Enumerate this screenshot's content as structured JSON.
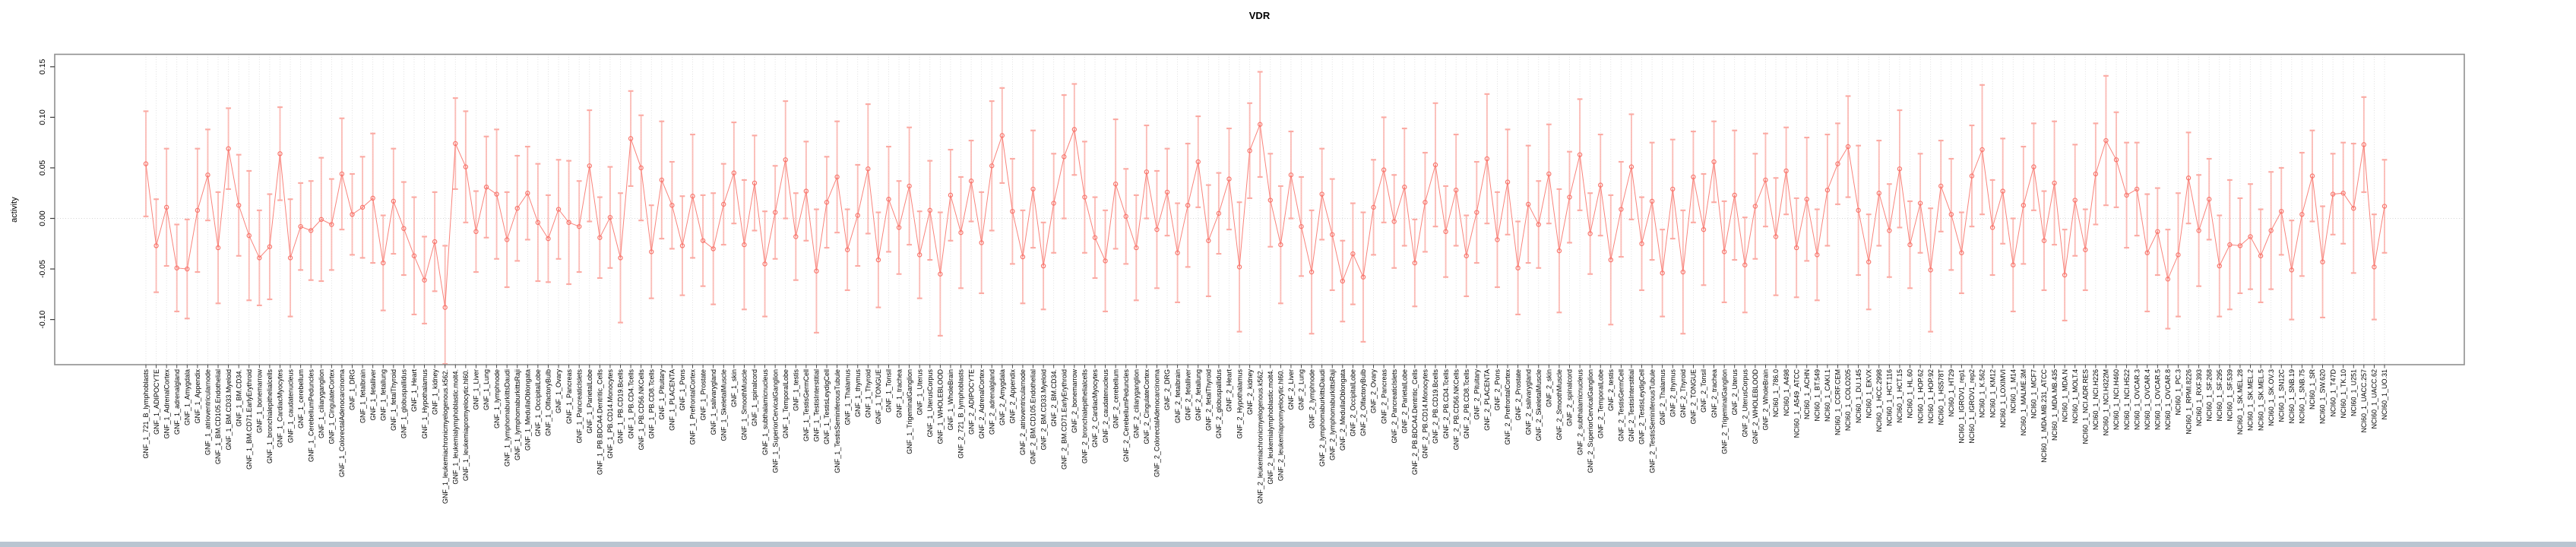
{
  "chart_data": {
    "type": "line",
    "title": "VDR",
    "ylabel": "activity",
    "xlabel": "",
    "legend": "none",
    "grid": "vertical dotted line per category; dotted horizontal line at y=0",
    "marker": "open-circle",
    "error_bars": "symmetric with caps",
    "ylim": [
      -0.145,
      0.162
    ],
    "yticks": [
      0.15,
      0.1,
      0.05,
      0.0,
      -0.05,
      -0.1
    ],
    "y_tick_labels": [
      "0.15",
      "0.10",
      "0.05",
      "0.00",
      "-0.05",
      "-0.10"
    ],
    "colors": {
      "series": "#f8766d",
      "error_bar": "#fbaaa3",
      "grid": "#d9d9d9",
      "zero_line": "#d4d4d4",
      "box": "#8f8f8f",
      "tick": "#3c3c3c",
      "text": "#000000",
      "background": "#ffffff",
      "bottom_edge": "#b9c5d1"
    },
    "categories": [
      "GNF_1_721_B_lymphoblasts",
      "GNF_1_ADIPOCYTE",
      "GNF_1_AdrenalCortex",
      "GNF_1_adrenalgland",
      "GNF_1_Amygdala",
      "GNF_1_Appendix",
      "GNF_1_atrioventricularnode",
      "GNF_1_BM.CD105.Endothelial",
      "GNF_1_BM.CD33.Myeloid",
      "GNF_1_BM.CD34.",
      "GNF_1_BM.CD71.EarlyErythroid",
      "GNF_1_bonemarrow",
      "GNF_1_bronchialepithelialcells",
      "GNF_1_CardiacMyocytes",
      "GNF_1_caudatenucleus",
      "GNF_1_cerebellum",
      "GNF_1_CerebellumPeduncles",
      "GNF_1_ciliaryganglion",
      "GNF_1_CingulateCortex",
      "GNF_1_ColorectalAdenocarcinoma",
      "GNF_1_DRG",
      "GNF_1_fetalbrain",
      "GNF_1_fetalliver",
      "GNF_1_fetallung",
      "GNF_1_fetalThyroid",
      "GNF_1_globuspallidus",
      "GNF_1_Heart",
      "GNF_1_Hypothalamus",
      "GNF_1_kidney",
      "GNF_1_leukemiachronicmyelogenous.k562.",
      "GNF_1_leukemialymphoblastic.molt4.",
      "GNF_1_leukemiapromyelocytic.hl60.",
      "GNF_1_Liver",
      "GNF_1_Lung",
      "GNF_1_lymphnode",
      "GNF_1_lymphomaburkittsDaudi",
      "GNF_1_lymphomaburkittsRaji",
      "GNF_1_MedullaOblongata",
      "GNF_1_OccipitalLobe",
      "GNF_1_OlfactoryBulb",
      "GNF_1_Ovary",
      "GNF_1_Pancreas",
      "GNF_1_PancreaticIslets",
      "GNF_1_ParietalLobe",
      "GNF_1_PB.BDCA4.Dentritic_Cells",
      "GNF_1_PB.CD14.Monocytes",
      "GNF_1_PB.CD19.Bcells",
      "GNF_1_PB.CD4.Tcells",
      "GNF_1_PB.CD56.NKCells",
      "GNF_1_PB.CD8.Tcells",
      "GNF_1_Pituitary",
      "GNF_1_PLACENTA",
      "GNF_1_Pons",
      "GNF_1_PrefrontalCortex",
      "GNF_1_Prostate",
      "GNF_1_salivarygland",
      "GNF_1_SkeletalMuscle",
      "GNF_1_skin",
      "GNF_1_SmoothMuscle",
      "GNF_1_spinalcord",
      "GNF_1_subthalamicnucleus",
      "GNF_1_SuperiorCervicalGanglion",
      "GNF_1_TemporalLobe",
      "GNF_1_testis",
      "GNF_1_TestisGermCell",
      "GNF_1_TestisInterstitial",
      "GNF_1_TestisLeydigCell",
      "GNF_1_TestisSeminiferousTubule",
      "GNF_1_Thalamus",
      "GNF_1_thymus",
      "GNF_1_Thyroid",
      "GNF_1_TONGUE",
      "GNF_1_Tonsil",
      "GNF_1_trachea",
      "GNF_1_TrigeminalGanglion",
      "GNF_1_Uterus",
      "GNF_1_UterusCorpus",
      "GNF_1_WHOLEBLOOD",
      "GNF_1_WholeBrain",
      "GNF_2_721_B_lymphoblasts",
      "GNF_2_ADIPOCYTE",
      "GNF_2_AdrenalCortex",
      "GNF_2_adrenalgland",
      "GNF_2_Amygdala",
      "GNF_2_Appendix",
      "GNF_2_atrioventricularnode",
      "GNF_2_BM.CD105.Endothelial",
      "GNF_2_BM.CD33.Myeloid",
      "GNF_2_BM.CD34.",
      "GNF_2_BM.CD71.EarlyErythroid",
      "GNF_2_bonemarrow",
      "GNF_2_bronchialepithelialcells",
      "GNF_2_CardiacMyocytes",
      "GNF_2_caudatenucleus",
      "GNF_2_cerebellum",
      "GNF_2_CerebellumPeduncles",
      "GNF_2_ciliaryganglion",
      "GNF_2_CingulateCortex",
      "GNF_2_ColorectalAdenocarcinoma",
      "GNF_2_DRG",
      "GNF_2_fetalbrain",
      "GNF_2_fetalliver",
      "GNF_2_fetallung",
      "GNF_2_fetalThyroid",
      "GNF_2_globuspallidus",
      "GNF_2_Heart",
      "GNF_2_Hypothalamus",
      "GNF_2_kidney",
      "GNF_2_leukemiachronicmyelogenous.k562.",
      "GNF_2_leukemialymphoblastic.molt4.",
      "GNF_2_leukemiapromyelocytic.hl60.",
      "GNF_2_Liver",
      "GNF_2_Lung",
      "GNF_2_lymphnode",
      "GNF_2_lymphomaburkittsDaudi",
      "GNF_2_lymphomaburkittsRaji",
      "GNF_2_MedullaOblongata",
      "GNF_2_OccipitalLobe",
      "GNF_2_OlfactoryBulb",
      "GNF_2_Ovary",
      "GNF_2_Pancreas",
      "GNF_2_PancreaticIslets",
      "GNF_2_ParietalLobe",
      "GNF_2_PB.BDCA4.Dentritic_Cells",
      "GNF_2_PB.CD14.Monocytes",
      "GNF_2_PB.CD19.Bcells",
      "GNF_2_PB.CD4.Tcells",
      "GNF_2_PB.CD56.NKCells",
      "GNF_2_PB.CD8.Tcells",
      "GNF_2_Pituitary",
      "GNF_2_PLACENTA",
      "GNF_2_Pons",
      "GNF_2_PrefrontalCortex",
      "GNF_2_Prostate",
      "GNF_2_salivarygland",
      "GNF_2_SkeletalMuscle",
      "GNF_2_skin",
      "GNF_2_SmoothMuscle",
      "GNF_2_spinalcord",
      "GNF_2_subthalamicnucleus",
      "GNF_2_SuperiorCervicalGanglion",
      "GNF_2_TemporalLobe",
      "GNF_2_testis",
      "GNF_2_TestisGermCell",
      "GNF_2_TestisInterstitial",
      "GNF_2_TestisLeydigCell",
      "GNF_2_TestisSeminiferousTubule",
      "GNF_2_Thalamus",
      "GNF_2_thymus",
      "GNF_2_Thyroid",
      "GNF_2_TONGUE",
      "GNF_2_Tonsil",
      "GNF_2_trachea",
      "GNF_2_TrigeminalGanglion",
      "GNF_2_Uterus",
      "GNF_2_UterusCorpus",
      "GNF_2_WHOLEBLOOD",
      "GNF_2_WholeBrain",
      "NCI60_1_786.0",
      "NCI60_1_A498",
      "NCI60_1_A549_ATCC",
      "NCI60_1_ACHN",
      "NCI60_1_BT.549",
      "NCI60_1_CAKI.1",
      "NCI60_1_CCRF.CEM",
      "NCI60_1_COLO205",
      "NCI60_1_DU.145",
      "NCI60_1_EKVX",
      "NCI60_1_HCC.2998",
      "NCI60_1_HCT.116",
      "NCI60_1_HCT.15",
      "NCI60_1_HL.60",
      "NCI60_1_HOP.62",
      "NCI60_1_HOP.92",
      "NCI60_1_HS578T",
      "NCI60_1_HT29",
      "NCI60_1_IGROV1_rep1",
      "NCI60_1_IGROV1_rep2",
      "NCI60_1_K.562",
      "NCI60_1_KM12",
      "NCI60_1_LOXIMVI",
      "NCI60_1_M14",
      "NCI60_1_MALME.3M",
      "NCI60_1_MCF7",
      "NCI60_1_MDA.MB.231_ATCC",
      "NCI60_1_MDA.MB.435",
      "NCI60_1_MDA.N",
      "NCI60_1_MOLT.4",
      "NCI60_1_NCI.ADR.RES",
      "NCI60_1_NCI.H226",
      "NCI60_1_NCI.H322M",
      "NCI60_1_NCI.H460",
      "NCI60_1_NCI.H522",
      "NCI60_1_OVCAR.3",
      "NCI60_1_OVCAR.4",
      "NCI60_1_OVCAR.5",
      "NCI60_1_OVCAR.8",
      "NCI60_1_PC.3",
      "NCI60_1_RPMI.8226",
      "NCI60_1_RXF.393",
      "NCI60_1_SF.268",
      "NCI60_1_SF.295",
      "NCI60_1_SF.539",
      "NCI60_1_SK.MEL.28",
      "NCI60_1_SK.MEL.2",
      "NCI60_1_SK.MEL.5",
      "NCI60_1_SK.OV.3",
      "NCI60_1_SN12C",
      "NCI60_1_SNB.19",
      "NCI60_1_SNB.75",
      "NCI60_1_SR",
      "NCI60_1_SW.620",
      "NCI60_1_T47D",
      "NCI60_1_TK.10",
      "NCI60_1_U251",
      "NCI60_1_UACC.257",
      "NCI60_1_UACC.62",
      "NCI60_1_UO.31"
    ],
    "values": [
      0.054,
      -0.027,
      0.011,
      -0.049,
      -0.05,
      0.008,
      0.043,
      -0.029,
      0.069,
      0.013,
      -0.017,
      -0.039,
      -0.028,
      0.064,
      -0.039,
      -0.008,
      -0.012,
      -0.001,
      -0.006,
      0.044,
      0.004,
      0.011,
      0.02,
      -0.044,
      0.017,
      -0.01,
      -0.037,
      -0.061,
      -0.023,
      -0.088,
      0.074,
      0.051,
      -0.013,
      0.031,
      0.024,
      -0.021,
      0.01,
      0.025,
      -0.004,
      -0.02,
      0.009,
      -0.004,
      -0.008,
      0.052,
      -0.019,
      0.001,
      -0.039,
      0.079,
      0.05,
      -0.033,
      0.038,
      0.013,
      -0.027,
      0.022,
      -0.022,
      -0.03,
      0.014,
      0.045,
      -0.026,
      0.035,
      -0.045,
      0.006,
      0.058,
      -0.018,
      0.027,
      -0.052,
      0.016,
      0.041,
      -0.031,
      0.003,
      0.049,
      -0.041,
      0.019,
      -0.009,
      0.032,
      -0.036,
      0.008,
      -0.055,
      0.023,
      -0.014,
      0.037,
      -0.024,
      0.052,
      0.082,
      0.007,
      -0.038,
      0.029,
      -0.047,
      0.015,
      0.061,
      0.088,
      0.021,
      -0.019,
      -0.042,
      0.034,
      0.002,
      -0.029,
      0.046,
      -0.011,
      0.026,
      -0.034,
      0.013,
      0.056,
      -0.022,
      0.005,
      0.039,
      -0.048,
      0.067,
      0.093,
      0.018,
      -0.026,
      0.043,
      -0.008,
      -0.053,
      0.024,
      -0.016,
      -0.062,
      -0.035,
      -0.058,
      0.011,
      0.048,
      -0.003,
      0.031,
      -0.044,
      0.016,
      0.053,
      -0.013,
      0.028,
      -0.037,
      0.006,
      0.059,
      -0.021,
      0.036,
      -0.049,
      0.014,
      -0.006,
      0.044,
      -0.032,
      0.021,
      0.063,
      -0.015,
      0.033,
      -0.041,
      0.009,
      0.051,
      -0.025,
      0.017,
      -0.054,
      0.029,
      -0.053,
      0.041,
      -0.011,
      0.056,
      -0.033,
      0.023,
      -0.046,
      0.012,
      0.038,
      -0.018,
      0.047,
      -0.029,
      0.019,
      -0.036,
      0.028,
      0.054,
      0.071,
      0.008,
      -0.043,
      0.025,
      -0.012,
      0.049,
      -0.026,
      0.015,
      -0.051,
      0.032,
      0.004,
      -0.034,
      0.042,
      0.068,
      -0.009,
      0.027,
      -0.046,
      0.013,
      0.051,
      -0.022,
      0.035,
      -0.056,
      0.018,
      -0.031,
      0.044,
      0.077,
      0.058,
      0.023,
      0.029,
      -0.034,
      -0.013,
      -0.06,
      -0.036,
      0.04,
      -0.012,
      0.019,
      -0.047,
      -0.026,
      -0.027,
      -0.018,
      -0.037,
      -0.012,
      0.007,
      -0.051,
      0.004,
      0.042,
      -0.043,
      0.024,
      0.025,
      0.01,
      0.073,
      -0.048,
      0.012
    ],
    "errors": [
      0.052,
      0.046,
      0.058,
      0.043,
      0.049,
      0.061,
      0.045,
      0.055,
      0.04,
      0.05,
      0.064,
      0.047,
      0.052,
      0.046,
      0.058,
      0.043,
      0.049,
      0.061,
      0.045,
      0.055,
      0.04,
      0.05,
      0.064,
      0.047,
      0.052,
      0.046,
      0.058,
      0.043,
      0.049,
      0.061,
      0.045,
      0.055,
      0.04,
      0.05,
      0.064,
      0.047,
      0.052,
      0.046,
      0.058,
      0.043,
      0.049,
      0.061,
      0.045,
      0.055,
      0.04,
      0.05,
      0.064,
      0.047,
      0.052,
      0.046,
      0.058,
      0.043,
      0.049,
      0.061,
      0.045,
      0.055,
      0.04,
      0.05,
      0.064,
      0.047,
      0.052,
      0.046,
      0.058,
      0.043,
      0.049,
      0.061,
      0.045,
      0.055,
      0.04,
      0.05,
      0.064,
      0.047,
      0.052,
      0.046,
      0.058,
      0.043,
      0.049,
      0.061,
      0.045,
      0.055,
      0.04,
      0.05,
      0.064,
      0.047,
      0.052,
      0.046,
      0.058,
      0.043,
      0.049,
      0.061,
      0.045,
      0.055,
      0.04,
      0.05,
      0.064,
      0.047,
      0.052,
      0.046,
      0.058,
      0.043,
      0.049,
      0.061,
      0.045,
      0.055,
      0.04,
      0.05,
      0.064,
      0.047,
      0.052,
      0.046,
      0.058,
      0.043,
      0.049,
      0.061,
      0.045,
      0.055,
      0.04,
      0.05,
      0.064,
      0.047,
      0.052,
      0.046,
      0.058,
      0.043,
      0.049,
      0.061,
      0.045,
      0.055,
      0.04,
      0.05,
      0.064,
      0.047,
      0.052,
      0.046,
      0.058,
      0.043,
      0.049,
      0.061,
      0.045,
      0.055,
      0.04,
      0.05,
      0.064,
      0.047,
      0.052,
      0.046,
      0.058,
      0.043,
      0.049,
      0.061,
      0.045,
      0.055,
      0.04,
      0.05,
      0.064,
      0.047,
      0.052,
      0.046,
      0.058,
      0.043,
      0.049,
      0.061,
      0.045,
      0.055,
      0.04,
      0.05,
      0.064,
      0.047,
      0.052,
      0.046,
      0.058,
      0.043,
      0.049,
      0.061,
      0.045,
      0.055,
      0.04,
      0.05,
      0.064,
      0.047,
      0.052,
      0.046,
      0.058,
      0.043,
      0.049,
      0.061,
      0.045,
      0.055,
      0.04,
      0.05,
      0.064,
      0.047,
      0.052,
      0.046,
      0.058,
      0.043,
      0.049,
      0.061,
      0.045,
      0.055,
      0.04,
      0.05,
      0.064,
      0.047,
      0.052,
      0.046,
      0.058,
      0.043,
      0.049,
      0.061,
      0.045,
      0.055,
      0.04,
      0.05,
      0.064,
      0.047,
      0.052,
      0.046
    ]
  }
}
